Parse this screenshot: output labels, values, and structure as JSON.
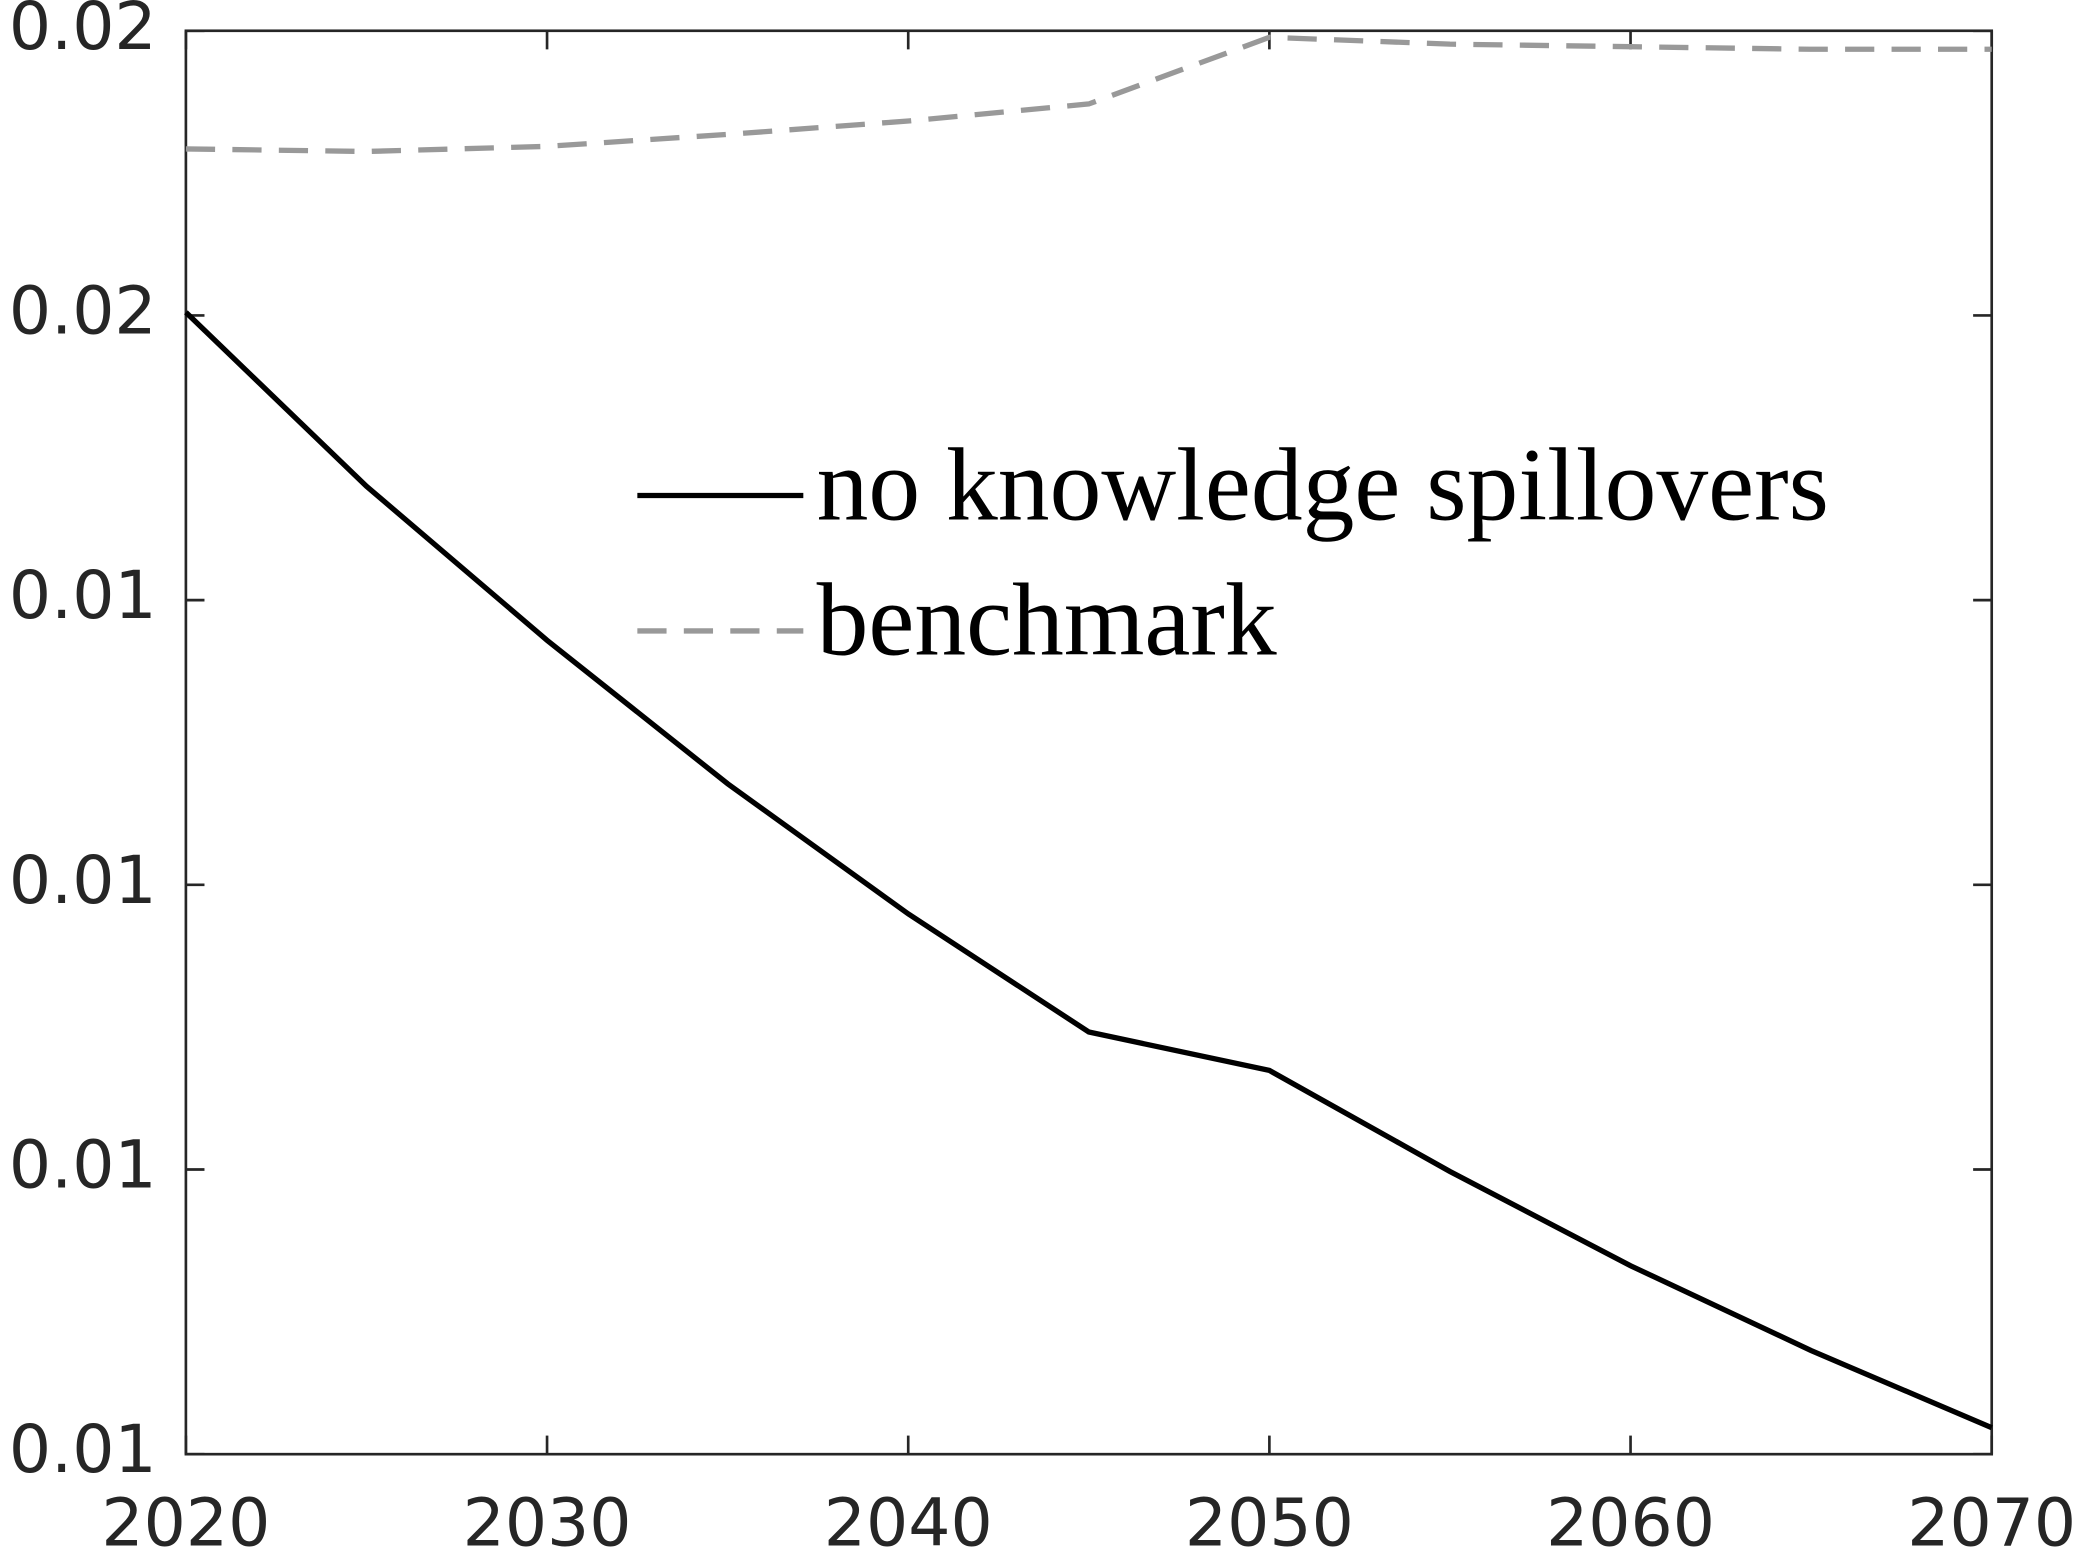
{
  "chart_data": {
    "type": "line",
    "x": [
      2020,
      2025,
      2030,
      2035,
      2040,
      2045,
      2050,
      2055,
      2060,
      2065,
      2070
    ],
    "series": [
      {
        "name": "no knowledge spillovers",
        "color": "#000000",
        "dash": false,
        "values": [
          0.015011,
          0.0144,
          0.013859,
          0.013355,
          0.012898,
          0.012483,
          0.012348,
          0.011993,
          0.011662,
          0.011364,
          0.011093
        ]
      },
      {
        "name": "benchmark",
        "color": "#999999",
        "dash": true,
        "values": [
          0.015585,
          0.015576,
          0.015594,
          0.015636,
          0.015683,
          0.015743,
          0.015977,
          0.015953,
          0.015944,
          0.015935,
          0.015935
        ]
      }
    ],
    "xlim": [
      2020,
      2070
    ],
    "xticks": [
      2020,
      2030,
      2040,
      2050,
      2060,
      2070
    ],
    "ylim": [
      0.011,
      0.016
    ],
    "yticks": [
      {
        "value": 0.011,
        "label": "0.01"
      },
      {
        "value": 0.012,
        "label": "0.01"
      },
      {
        "value": 0.013,
        "label": "0.01"
      },
      {
        "value": 0.014,
        "label": "0.01"
      },
      {
        "value": 0.015,
        "label": "0.02"
      },
      {
        "value": 0.016,
        "label": "0.02"
      }
    ],
    "grid": false
  }
}
